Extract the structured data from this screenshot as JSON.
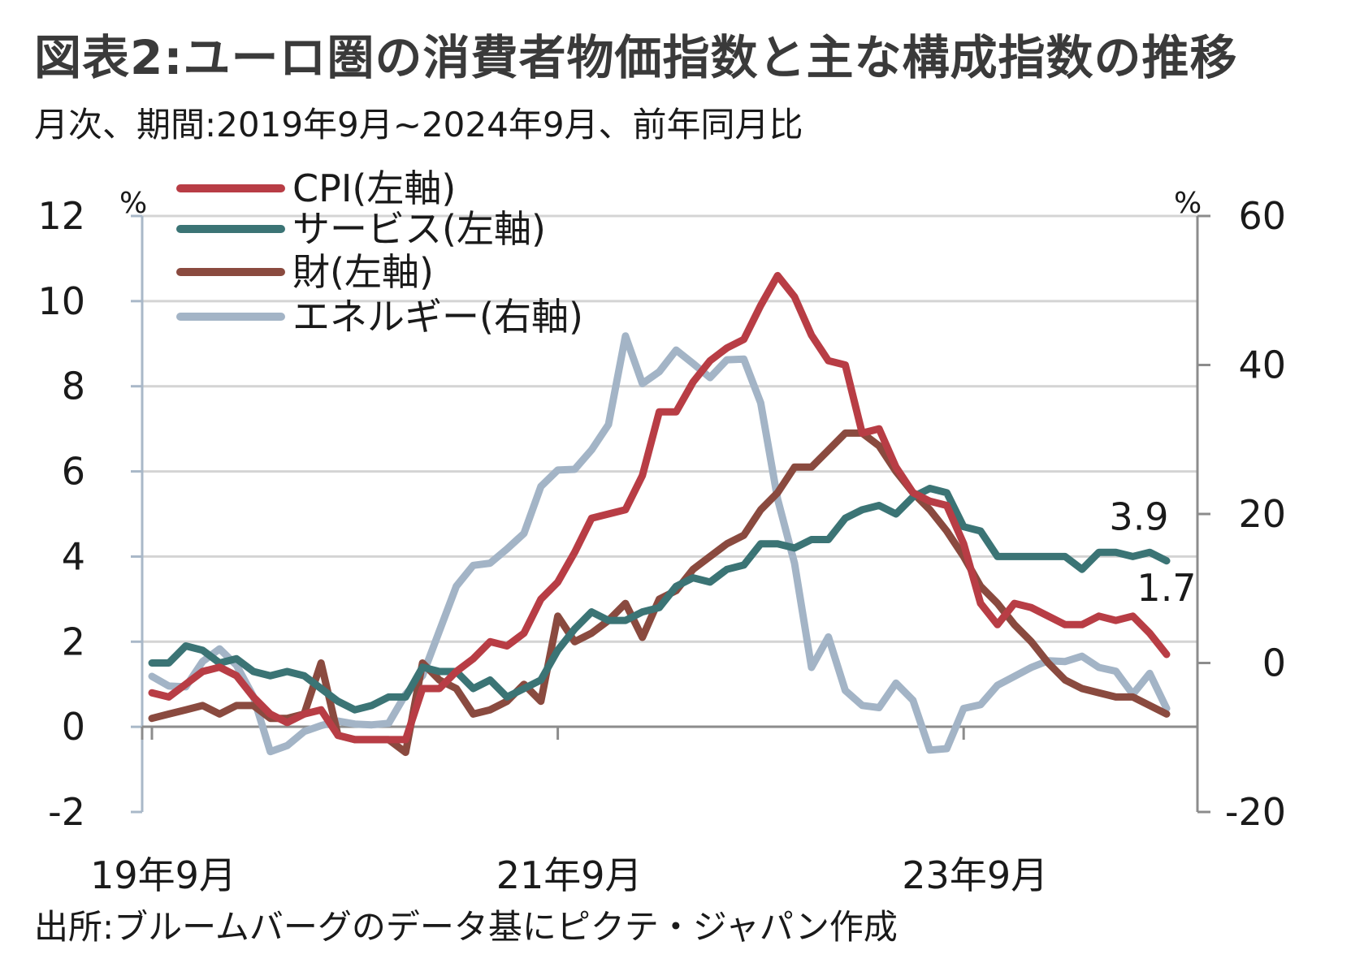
{
  "header": {
    "title": "図表2:ユーロ圏の消費者物価指数と主な構成指数の推移",
    "subtitle": "月次、期間:2019年9月~2024年9月、前年同月比"
  },
  "footer": {
    "source": "出所:ブルームバーグのデータ基にピクテ・ジャパン作成"
  },
  "colors": {
    "cpi": "#b83d45",
    "services": "#3b7475",
    "goods": "#8a4a3f",
    "energy": "#a3b4c6",
    "grid": "#d4d4d4",
    "axis": "#a9b8c8"
  },
  "chart_data": {
    "type": "line",
    "left_axis": {
      "unit": "%",
      "range": [
        -2,
        12
      ],
      "ticks": [
        "12",
        "10",
        "8",
        "6",
        "4",
        "2",
        "0",
        "-2"
      ]
    },
    "right_axis": {
      "unit": "%",
      "range": [
        -20,
        60
      ],
      "ticks": [
        "60",
        "40",
        "20",
        "0",
        "-20"
      ]
    },
    "x_ticks": [
      "19年9月",
      "21年9月",
      "23年9月"
    ],
    "x_start": "2019-09",
    "x_end": "2024-09",
    "grid": "horizontal",
    "legend_position": "top-left",
    "series": [
      {
        "name": "CPI(左軸)",
        "axis": "left",
        "values": [
          0.8,
          0.7,
          1.0,
          1.3,
          1.4,
          1.2,
          0.7,
          0.3,
          0.1,
          0.3,
          0.4,
          -0.2,
          -0.3,
          -0.3,
          -0.3,
          -0.3,
          0.9,
          0.9,
          1.3,
          1.6,
          2.0,
          1.9,
          2.2,
          3.0,
          3.4,
          4.1,
          4.9,
          5.0,
          5.1,
          5.9,
          7.4,
          7.4,
          8.1,
          8.6,
          8.9,
          9.1,
          9.9,
          10.6,
          10.1,
          9.2,
          8.6,
          8.5,
          6.9,
          7.0,
          6.1,
          5.5,
          5.3,
          5.2,
          4.3,
          2.9,
          2.4,
          2.9,
          2.8,
          2.6,
          2.4,
          2.4,
          2.6,
          2.5,
          2.6,
          2.2,
          1.7
        ]
      },
      {
        "name": "サービス(左軸)",
        "axis": "left",
        "values": [
          1.5,
          1.5,
          1.9,
          1.8,
          1.5,
          1.6,
          1.3,
          1.2,
          1.3,
          1.2,
          0.9,
          0.6,
          0.4,
          0.5,
          0.7,
          0.7,
          1.4,
          1.3,
          1.3,
          0.9,
          1.1,
          0.7,
          0.9,
          1.1,
          1.8,
          2.3,
          2.7,
          2.5,
          2.5,
          2.7,
          2.8,
          3.3,
          3.5,
          3.4,
          3.7,
          3.8,
          4.3,
          4.3,
          4.2,
          4.4,
          4.4,
          4.9,
          5.1,
          5.2,
          5.0,
          5.4,
          5.6,
          5.5,
          4.7,
          4.6,
          4.0,
          4.0,
          4.0,
          4.0,
          4.0,
          3.7,
          4.1,
          4.1,
          4.0,
          4.1,
          3.9
        ]
      },
      {
        "name": "財(左軸)",
        "axis": "left",
        "values": [
          0.2,
          0.3,
          0.4,
          0.5,
          0.3,
          0.5,
          0.5,
          0.2,
          0.2,
          0.3,
          1.5,
          -0.2,
          -0.3,
          -0.3,
          -0.3,
          -0.6,
          1.5,
          1.1,
          0.9,
          0.3,
          0.4,
          0.6,
          1.0,
          0.6,
          2.6,
          2.0,
          2.2,
          2.5,
          2.9,
          2.1,
          3.0,
          3.2,
          3.7,
          4.0,
          4.3,
          4.5,
          5.1,
          5.5,
          6.1,
          6.1,
          6.5,
          6.9,
          6.9,
          6.6,
          6.0,
          5.5,
          5.1,
          4.6,
          4.0,
          3.3,
          2.9,
          2.4,
          2.0,
          1.5,
          1.1,
          0.9,
          0.8,
          0.7,
          0.7,
          0.5,
          0.3
        ]
      },
      {
        "name": "エネルギー(右軸)",
        "axis": "right",
        "values": [
          -1.8,
          -3.1,
          -3.2,
          0.2,
          1.9,
          -0.3,
          -4.5,
          -11.9,
          -11.1,
          -9.2,
          -8.4,
          -7.8,
          -8.2,
          -8.3,
          -8.1,
          -4.2,
          -1.7,
          4.3,
          10.3,
          13.1,
          13.4,
          15.3,
          17.4,
          23.7,
          25.9,
          26.0,
          28.6,
          32.0,
          43.9,
          37.5,
          39.1,
          42.0,
          40.2,
          38.3,
          40.7,
          40.8,
          34.9,
          22.0,
          13.4,
          -0.6,
          3.5,
          -3.7,
          -5.7,
          -6.0,
          -2.7,
          -5.0,
          -11.7,
          -11.5,
          -6.1,
          -5.6,
          -3.0,
          -1.8,
          -0.6,
          0.3,
          0.2,
          0.9,
          -0.6,
          -1.1,
          -4.2,
          -1.4,
          -6.1
        ]
      }
    ],
    "annotations": [
      {
        "text": "3.9",
        "series": "サービス(左軸)"
      },
      {
        "text": "1.7",
        "series": "CPI(左軸)"
      }
    ]
  }
}
